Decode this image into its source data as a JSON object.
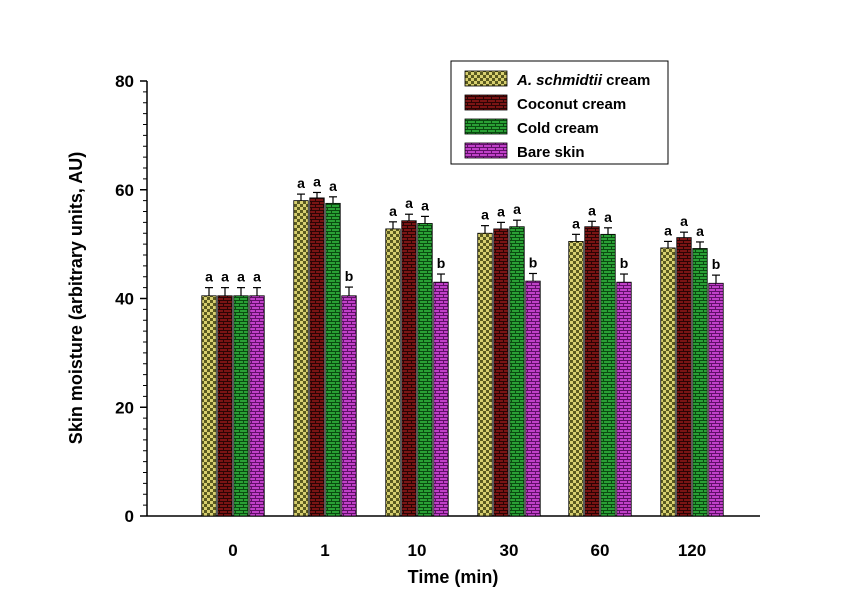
{
  "chart_data": {
    "type": "bar",
    "title": "",
    "xlabel": "Time (min)",
    "ylabel": "Skin moisture  (arbitrary units, AU)",
    "ylim": [
      0,
      80
    ],
    "yticks": [
      "0",
      "20",
      "40",
      "60",
      "80"
    ],
    "categories": [
      "0",
      "1",
      "10",
      "30",
      "60",
      "120"
    ],
    "series": [
      {
        "name": "A. schmidtii",
        "name_suffix": " cream",
        "color": "#c8c060",
        "values": [
          40.5,
          58.0,
          52.8,
          52.0,
          50.5,
          49.3
        ],
        "errors": [
          1.5,
          1.2,
          1.3,
          1.4,
          1.3,
          1.2
        ],
        "labels": [
          "a",
          "a",
          "a",
          "a",
          "a",
          "a"
        ]
      },
      {
        "name": "Coconut cream",
        "name_suffix": "",
        "color": "#6a0f0f",
        "values": [
          40.5,
          58.5,
          54.3,
          52.8,
          53.2,
          51.2
        ],
        "errors": [
          1.5,
          1.0,
          1.2,
          1.2,
          1.0,
          1.0
        ],
        "labels": [
          "a",
          "a",
          "a",
          "a",
          "a",
          "a"
        ]
      },
      {
        "name": "Cold cream",
        "name_suffix": "",
        "color": "#1f8a2a",
        "values": [
          40.5,
          57.5,
          53.8,
          53.2,
          51.8,
          49.2
        ],
        "errors": [
          1.5,
          1.2,
          1.3,
          1.2,
          1.2,
          1.2
        ],
        "labels": [
          "a",
          "a",
          "a",
          "a",
          "a",
          "a"
        ]
      },
      {
        "name": "Bare skin",
        "name_suffix": "",
        "color": "#b030b8",
        "values": [
          40.5,
          40.5,
          43.0,
          43.2,
          43.0,
          42.8
        ],
        "errors": [
          1.5,
          1.6,
          1.5,
          1.4,
          1.5,
          1.5
        ],
        "labels": [
          "a",
          "b",
          "b",
          "b",
          "b",
          "b"
        ]
      }
    ],
    "legend_position": "top-right"
  }
}
